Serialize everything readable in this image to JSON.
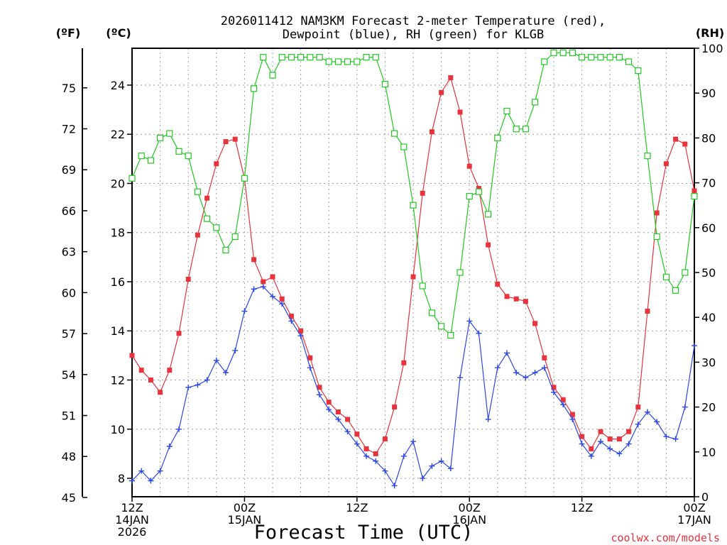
{
  "chart_data": {
    "type": "line",
    "title_line1": "2026011412 NAM3KM Forecast 2-meter Temperature (red),",
    "title_line2": "Dewpoint (blue), RH (green) for KLGB",
    "x_axis": {
      "title": "Forecast Time (UTC)",
      "range_hours": [
        0,
        60
      ],
      "ticks": [
        {
          "hour": 0,
          "line1": "12Z",
          "line2": "14JAN",
          "line3": "2026"
        },
        {
          "hour": 12,
          "line1": "00Z",
          "line2": "15JAN",
          "line3": ""
        },
        {
          "hour": 24,
          "line1": "12Z",
          "line2": "",
          "line3": ""
        },
        {
          "hour": 36,
          "line1": "00Z",
          "line2": "16JAN",
          "line3": ""
        },
        {
          "hour": 48,
          "line1": "12Z",
          "line2": "",
          "line3": ""
        },
        {
          "hour": 60,
          "line1": "00Z",
          "line2": "17JAN",
          "line3": ""
        }
      ]
    },
    "y_left_f": {
      "unit_label": "(ºF)",
      "ticks": [
        "45",
        "48",
        "51",
        "54",
        "57",
        "60",
        "63",
        "66",
        "69",
        "72",
        "75"
      ]
    },
    "y_left_c": {
      "unit_label": "(ºC)",
      "range": [
        7.25,
        25.5
      ],
      "ticks": [
        "8",
        "10",
        "12",
        "14",
        "16",
        "18",
        "20",
        "22",
        "24"
      ]
    },
    "y_right_rh": {
      "unit_label": "(RH)",
      "range": [
        0,
        100
      ],
      "ticks": [
        "0",
        "10",
        "20",
        "30",
        "40",
        "50",
        "60",
        "70",
        "80",
        "90",
        "100"
      ]
    },
    "series": [
      {
        "name": "2-meter Temperature",
        "units": "C",
        "color": "#e8323c",
        "marker": "filled-square",
        "values": [
          13.0,
          12.4,
          12.0,
          11.5,
          12.4,
          13.9,
          16.1,
          17.9,
          19.4,
          20.8,
          21.7,
          21.8,
          20.2,
          16.9,
          16.0,
          16.2,
          15.3,
          14.6,
          14.0,
          12.9,
          11.7,
          11.1,
          10.7,
          10.4,
          9.8,
          9.2,
          9.0,
          9.6,
          10.9,
          12.7,
          16.2,
          19.6,
          22.1,
          23.7,
          24.3,
          22.9,
          20.7,
          19.8,
          17.5,
          15.9,
          15.4,
          15.3,
          15.2,
          14.3,
          12.9,
          11.7,
          11.2,
          10.6,
          9.7,
          9.2,
          9.9,
          9.6,
          9.6,
          9.9,
          10.9,
          14.8,
          18.8,
          20.8,
          21.8,
          21.6,
          19.7
        ]
      },
      {
        "name": "Dewpoint",
        "units": "C",
        "color": "#2b46e8",
        "marker": "plus",
        "values": [
          7.9,
          8.3,
          7.9,
          8.3,
          9.3,
          10.0,
          11.7,
          11.8,
          12.0,
          12.8,
          12.3,
          13.2,
          14.8,
          15.7,
          15.8,
          15.4,
          15.1,
          14.4,
          13.8,
          12.5,
          11.4,
          10.8,
          10.4,
          9.9,
          9.4,
          8.9,
          8.7,
          8.3,
          7.7,
          8.9,
          9.5,
          8.0,
          8.5,
          8.7,
          8.4,
          12.1,
          14.4,
          13.9,
          10.4,
          12.5,
          13.1,
          12.3,
          12.1,
          12.3,
          12.5,
          11.5,
          11.0,
          10.4,
          9.4,
          8.9,
          9.5,
          9.2,
          9.0,
          9.4,
          10.2,
          10.7,
          10.3,
          9.7,
          9.6,
          10.9,
          13.4
        ]
      },
      {
        "name": "RH",
        "units": "%",
        "color": "#22c922",
        "marker": "open-square",
        "values": [
          71,
          76,
          75,
          80,
          81,
          77,
          76,
          68,
          62,
          60,
          55,
          58,
          71,
          91,
          98,
          94,
          98,
          98,
          98,
          98,
          98,
          97,
          97,
          97,
          97,
          98,
          98,
          92,
          81,
          78,
          65,
          47,
          41,
          38,
          36,
          50,
          67,
          68,
          63,
          80,
          86,
          82,
          82,
          88,
          97,
          99,
          99,
          99,
          98,
          98,
          98,
          98,
          98,
          97,
          95,
          76,
          58,
          49,
          46,
          50,
          67
        ]
      }
    ]
  },
  "credit": "coolwx.com/models"
}
